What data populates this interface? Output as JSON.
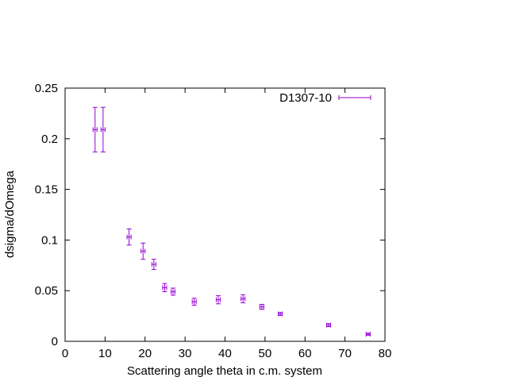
{
  "chart_data": {
    "type": "scatter",
    "title": "",
    "xlabel": "Scattering angle theta in c.m. system",
    "ylabel": "dsigma/dOmega",
    "xlim": [
      0,
      80
    ],
    "ylim": [
      0,
      0.25
    ],
    "xticks": [
      0,
      10,
      20,
      30,
      40,
      50,
      60,
      70,
      80
    ],
    "yticks": [
      0,
      0.05,
      0.1,
      0.15,
      0.2,
      0.25
    ],
    "xtick_labels": [
      "0",
      "10",
      "20",
      "30",
      "40",
      "50",
      "60",
      "70",
      "80"
    ],
    "ytick_labels": [
      "0",
      "0.05",
      "0.1",
      "0.15",
      "0.2",
      "0.25"
    ],
    "grid": false,
    "legend_position": "top-right",
    "series": [
      {
        "name": "D1307-10",
        "color": "#9400d3",
        "marker": "errorbars",
        "points": [
          {
            "x": 7.5,
            "y": 0.209,
            "yerr": 0.022,
            "xerr": 0.5
          },
          {
            "x": 9.5,
            "y": 0.209,
            "yerr": 0.022,
            "xerr": 0.5
          },
          {
            "x": 16.0,
            "y": 0.103,
            "yerr": 0.008,
            "xerr": 0.5
          },
          {
            "x": 19.5,
            "y": 0.089,
            "yerr": 0.008,
            "xerr": 0.5
          },
          {
            "x": 22.2,
            "y": 0.076,
            "yerr": 0.005,
            "xerr": 0.5
          },
          {
            "x": 24.9,
            "y": 0.053,
            "yerr": 0.004,
            "xerr": 0.5
          },
          {
            "x": 27.0,
            "y": 0.049,
            "yerr": 0.0035,
            "xerr": 0.5
          },
          {
            "x": 32.3,
            "y": 0.039,
            "yerr": 0.0035,
            "xerr": 0.5
          },
          {
            "x": 38.3,
            "y": 0.041,
            "yerr": 0.004,
            "xerr": 0.5
          },
          {
            "x": 44.5,
            "y": 0.042,
            "yerr": 0.004,
            "xerr": 0.5
          },
          {
            "x": 49.2,
            "y": 0.034,
            "yerr": 0.0025,
            "xerr": 0.5
          },
          {
            "x": 53.8,
            "y": 0.027,
            "yerr": 0.0015,
            "xerr": 0.5
          },
          {
            "x": 65.9,
            "y": 0.016,
            "yerr": 0.0015,
            "xerr": 0.5
          },
          {
            "x": 75.8,
            "y": 0.007,
            "yerr": 0.001,
            "xerr": 0.5
          }
        ]
      }
    ]
  }
}
